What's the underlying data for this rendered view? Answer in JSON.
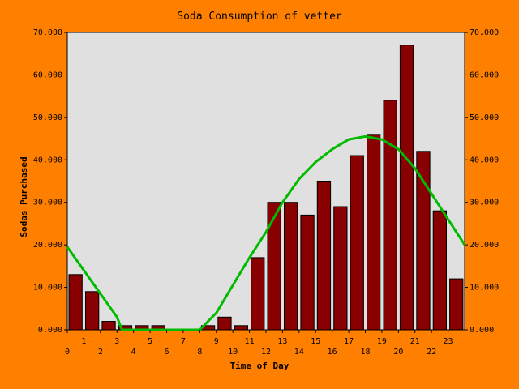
{
  "chart_data": {
    "type": "bar",
    "title": "Soda Consumption of vetter",
    "xlabel": "Time of Day",
    "ylabel": "Sodas Purchased",
    "categories": [
      "0",
      "1",
      "2",
      "3",
      "4",
      "5",
      "6",
      "7",
      "8",
      "9",
      "10",
      "11",
      "12",
      "13",
      "14",
      "15",
      "16",
      "17",
      "18",
      "19",
      "20",
      "21",
      "22",
      "23"
    ],
    "x_tick_labels": [
      "0",
      "1",
      "2",
      "3",
      "4",
      "5",
      "6",
      "7",
      "8",
      "9",
      "10",
      "11",
      "12",
      "13",
      "14",
      "15",
      "16",
      "17",
      "18",
      "19",
      "20",
      "21",
      "22",
      "23"
    ],
    "x_tick_positions": [
      0,
      1,
      2,
      3,
      4,
      5,
      6,
      7,
      8,
      9,
      10,
      11,
      12,
      13,
      14,
      15,
      16,
      17,
      18,
      19,
      20,
      21,
      22,
      23
    ],
    "xlim": [
      0,
      24
    ],
    "ylim": [
      0,
      70
    ],
    "y_ticks": [
      0,
      10,
      20,
      30,
      40,
      50,
      60,
      70
    ],
    "y_tick_labels": [
      "0.000",
      "10.000",
      "20.000",
      "30.000",
      "40.000",
      "50.000",
      "60.000",
      "70.000"
    ],
    "values": [
      13,
      9,
      2,
      1,
      1,
      1,
      0,
      0,
      1,
      3,
      1,
      17,
      30,
      30,
      27,
      35,
      29,
      41,
      46,
      54,
      67,
      42,
      28,
      12
    ],
    "trend_line": {
      "x": [
        0,
        1,
        2,
        3,
        3.3,
        8,
        9,
        10,
        11,
        12,
        13,
        14,
        15,
        16,
        17,
        18,
        19,
        20,
        21,
        22,
        23,
        24
      ],
      "y": [
        19.5,
        14,
        8.5,
        3,
        0,
        0,
        4,
        10.5,
        17,
        23,
        30,
        35.5,
        39.5,
        42.5,
        44.8,
        45.5,
        44.8,
        42.5,
        38,
        32,
        26,
        20
      ]
    },
    "grid": false,
    "right_axis": true,
    "colors": {
      "background": "#ff8000",
      "plot_area": "#e0e0e0",
      "bar_fill": "#880000",
      "bar_stroke": "#000000",
      "trend_line": "#00bb00"
    }
  }
}
